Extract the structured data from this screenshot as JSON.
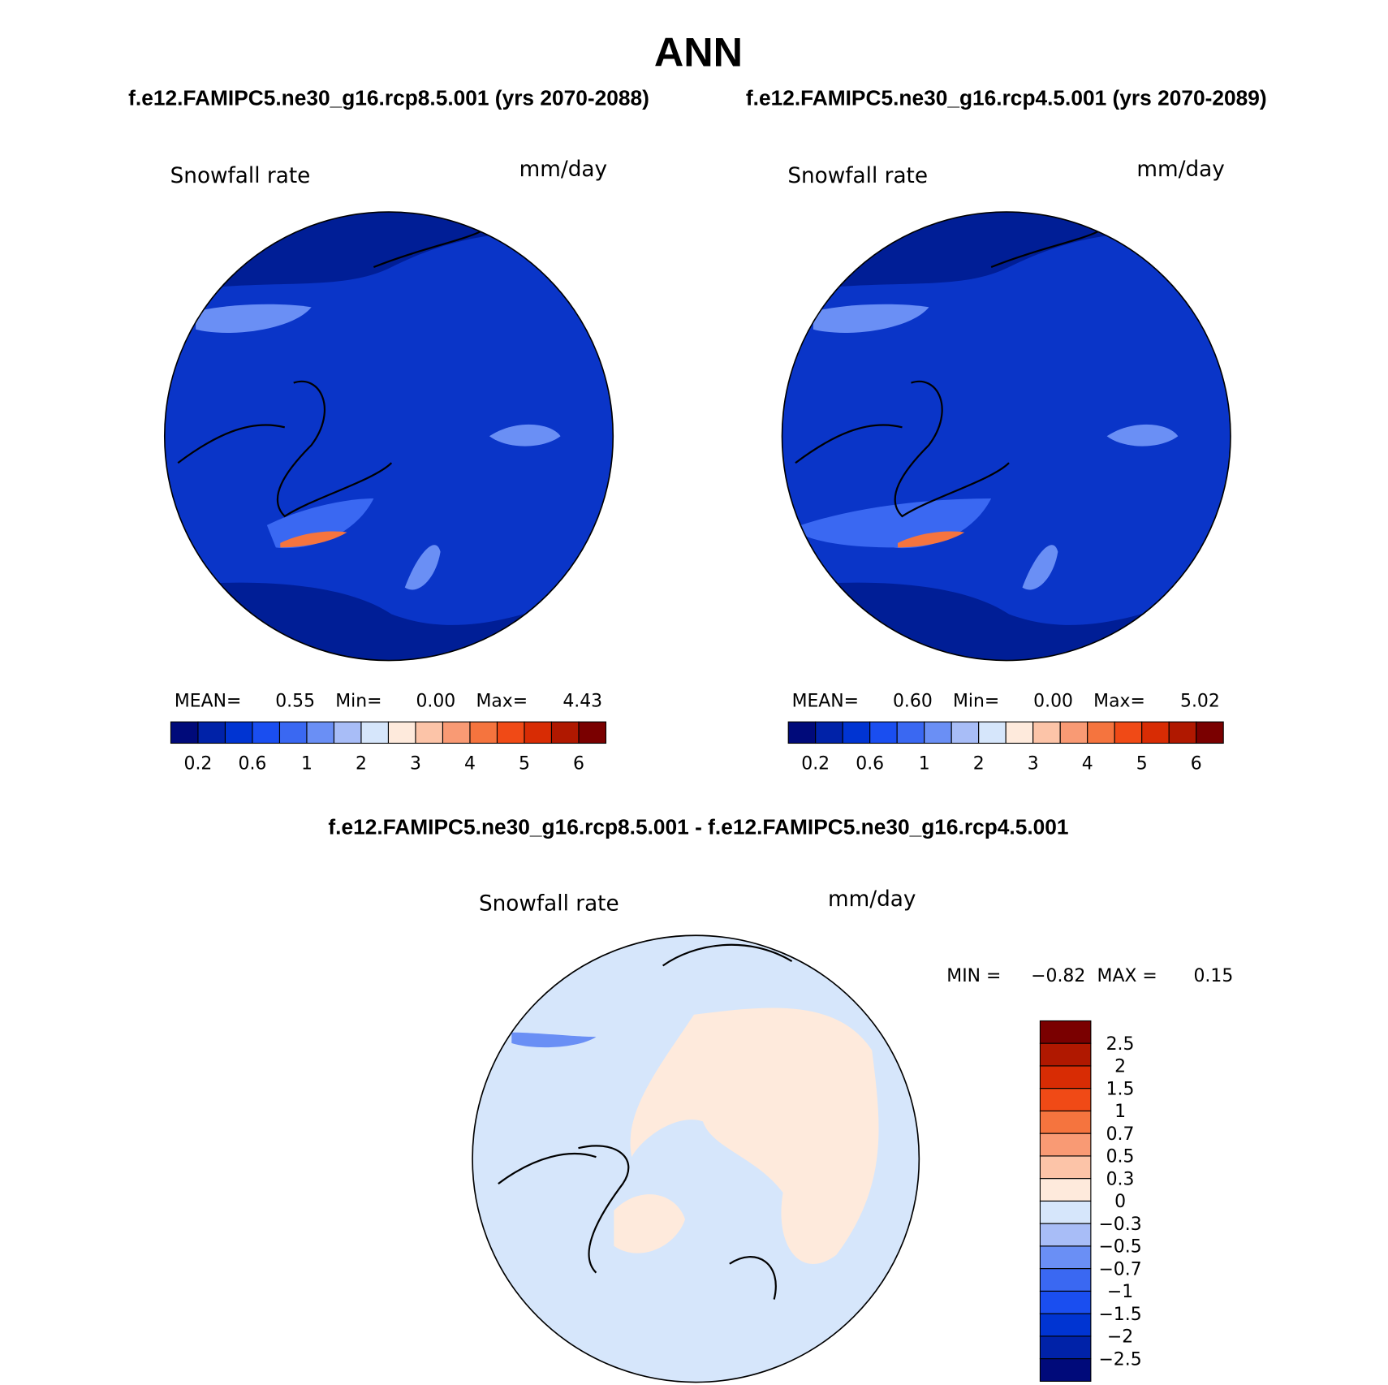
{
  "title": "ANN",
  "panels": [
    {
      "case": "f.e12.FAMIPC5.ne30_g16.rcp8.5.001 (yrs 2070-2088)",
      "variable": "Snowfall rate",
      "units": "mm/day",
      "stats": [
        {
          "label": "MEAN=",
          "value": "0.55"
        },
        {
          "label": "Min=",
          "value": "0.00"
        },
        {
          "label": "Max=",
          "value": "4.43"
        }
      ],
      "colorbar": {
        "labels": [
          "0.2",
          "0.6",
          "1",
          "2",
          "3",
          "4",
          "5",
          "6"
        ],
        "colors": [
          "#000a7a",
          "#0022a8",
          "#0034d2",
          "#1a4ef0",
          "#3a68f2",
          "#6a8ff5",
          "#a8bdf7",
          "#d6e6fb",
          "#feeadc",
          "#fcc4a8",
          "#f99a74",
          "#f5743e",
          "#f04a16",
          "#d82c04",
          "#b01800",
          "#7a0000"
        ]
      }
    },
    {
      "case": "f.e12.FAMIPC5.ne30_g16.rcp4.5.001 (yrs 2070-2089)",
      "variable": "Snowfall rate",
      "units": "mm/day",
      "stats": [
        {
          "label": "MEAN=",
          "value": "0.60"
        },
        {
          "label": "Min=",
          "value": "0.00"
        },
        {
          "label": "Max=",
          "value": "5.02"
        }
      ],
      "colorbar": {
        "labels": [
          "0.2",
          "0.6",
          "1",
          "2",
          "3",
          "4",
          "5",
          "6"
        ],
        "colors": [
          "#000a7a",
          "#0022a8",
          "#0034d2",
          "#1a4ef0",
          "#3a68f2",
          "#6a8ff5",
          "#a8bdf7",
          "#d6e6fb",
          "#feeadc",
          "#fcc4a8",
          "#f99a74",
          "#f5743e",
          "#f04a16",
          "#d82c04",
          "#b01800",
          "#7a0000"
        ]
      }
    }
  ],
  "difference": {
    "case": "f.e12.FAMIPC5.ne30_g16.rcp8.5.001 - f.e12.FAMIPC5.ne30_g16.rcp4.5.001",
    "variable": "Snowfall rate",
    "units": "mm/day",
    "stats": [
      {
        "label": "MIN =",
        "value": "−0.82"
      },
      {
        "label": "MAX =",
        "value": "0.15"
      }
    ],
    "colorbar": {
      "labels": [
        "2.5",
        "2",
        "1.5",
        "1",
        "0.7",
        "0.5",
        "0.3",
        "0",
        "−0.3",
        "−0.5",
        "−0.7",
        "−1",
        "−1.5",
        "−2",
        "−2.5"
      ],
      "colors": [
        "#7a0000",
        "#b01800",
        "#d82c04",
        "#f04a16",
        "#f5743e",
        "#f99a74",
        "#fcc4a8",
        "#feeadc",
        "#d6e6fb",
        "#a8bdf7",
        "#6a8ff5",
        "#3a68f2",
        "#1a4ef0",
        "#0034d2",
        "#0022a8",
        "#000a7a"
      ]
    }
  }
}
